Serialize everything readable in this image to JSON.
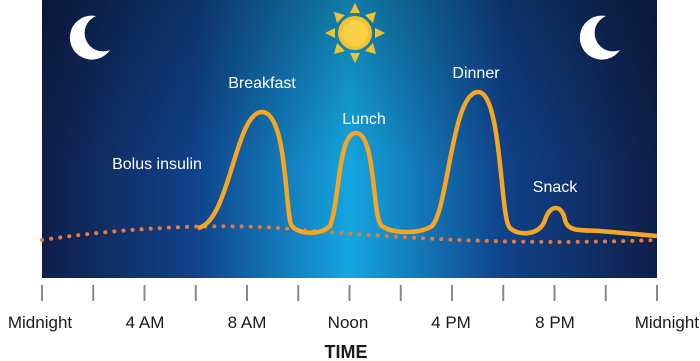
{
  "labels": [
    "Bolus insulin",
    "Breakfast",
    "Lunch",
    "Dinner",
    "Snack"
  ],
  "axis": {
    "ticks": [
      "Midnight",
      "4 AM",
      "8 AM",
      "Noon",
      "4 PM",
      "8 PM",
      "Midnight"
    ],
    "title": "TIME"
  }
}
